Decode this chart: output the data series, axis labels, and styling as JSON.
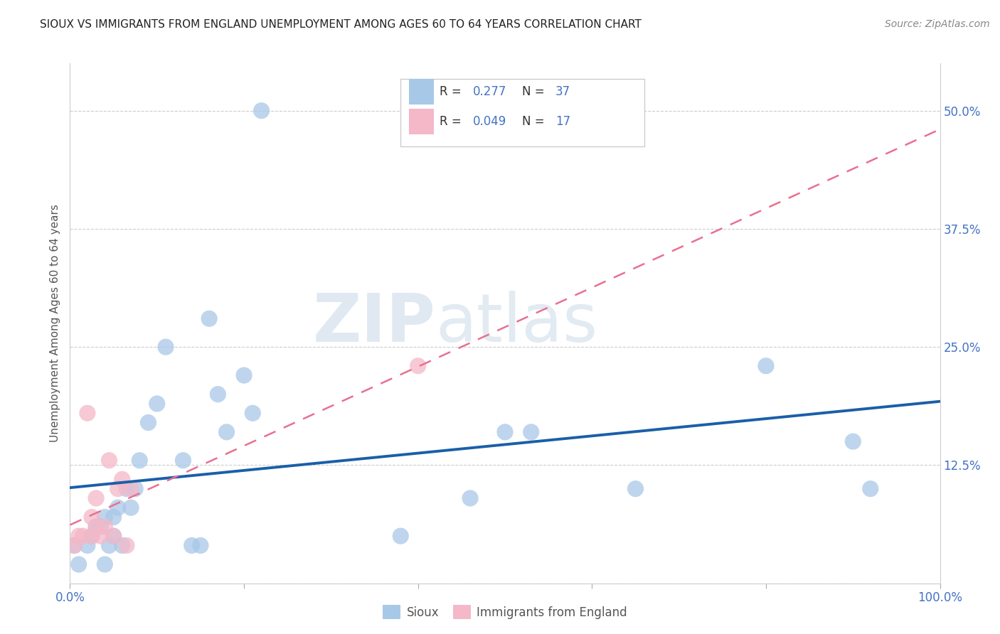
{
  "title": "SIOUX VS IMMIGRANTS FROM ENGLAND UNEMPLOYMENT AMONG AGES 60 TO 64 YEARS CORRELATION CHART",
  "source": "Source: ZipAtlas.com",
  "ylabel": "Unemployment Among Ages 60 to 64 years",
  "xlim": [
    0.0,
    1.0
  ],
  "ylim": [
    0.0,
    0.55
  ],
  "yticks": [
    0.0,
    0.125,
    0.25,
    0.375,
    0.5
  ],
  "ytick_labels_right": [
    "",
    "12.5%",
    "25.0%",
    "37.5%",
    "50.0%"
  ],
  "xticks": [
    0.0,
    0.2,
    0.4,
    0.6,
    0.8,
    1.0
  ],
  "xtick_labels": [
    "0.0%",
    "",
    "",
    "",
    "",
    "100.0%"
  ],
  "sioux_R": 0.277,
  "sioux_N": 37,
  "immigrants_R": 0.049,
  "immigrants_N": 17,
  "sioux_color": "#a8c8e8",
  "immigrants_color": "#f4b8c8",
  "sioux_line_color": "#1a5fa8",
  "immigrants_line_color": "#e87090",
  "watermark_zip": "ZIP",
  "watermark_atlas": "atlas",
  "sioux_x": [
    0.005,
    0.01,
    0.02,
    0.025,
    0.03,
    0.035,
    0.04,
    0.04,
    0.045,
    0.05,
    0.05,
    0.055,
    0.06,
    0.065,
    0.07,
    0.075,
    0.08,
    0.09,
    0.1,
    0.11,
    0.13,
    0.14,
    0.15,
    0.16,
    0.17,
    0.18,
    0.2,
    0.21,
    0.22,
    0.38,
    0.46,
    0.5,
    0.53,
    0.65,
    0.8,
    0.9,
    0.92
  ],
  "sioux_y": [
    0.04,
    0.02,
    0.04,
    0.05,
    0.06,
    0.06,
    0.02,
    0.07,
    0.04,
    0.05,
    0.07,
    0.08,
    0.04,
    0.1,
    0.08,
    0.1,
    0.13,
    0.17,
    0.19,
    0.25,
    0.13,
    0.04,
    0.04,
    0.28,
    0.2,
    0.16,
    0.22,
    0.18,
    0.5,
    0.05,
    0.09,
    0.16,
    0.16,
    0.1,
    0.23,
    0.15,
    0.1
  ],
  "immigrants_x": [
    0.005,
    0.01,
    0.015,
    0.02,
    0.025,
    0.025,
    0.03,
    0.03,
    0.035,
    0.04,
    0.045,
    0.05,
    0.055,
    0.06,
    0.065,
    0.07,
    0.4
  ],
  "immigrants_y": [
    0.04,
    0.05,
    0.05,
    0.18,
    0.05,
    0.07,
    0.06,
    0.09,
    0.05,
    0.06,
    0.13,
    0.05,
    0.1,
    0.11,
    0.04,
    0.1,
    0.23
  ]
}
